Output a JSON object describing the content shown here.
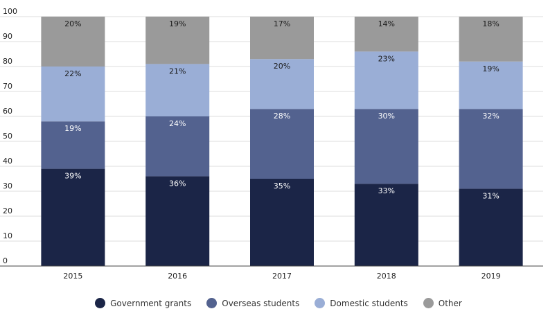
{
  "chart_data": {
    "type": "bar",
    "stacked": true,
    "categories": [
      "2015",
      "2016",
      "2017",
      "2018",
      "2019"
    ],
    "ylim": [
      0,
      100
    ],
    "yticks": [
      0,
      10,
      20,
      30,
      40,
      50,
      60,
      70,
      80,
      90,
      100
    ],
    "grid": true,
    "legend_position": "bottom",
    "series": [
      {
        "name": "Government grants",
        "color": "#1b2547",
        "text_color": "#ffffff",
        "values": [
          39,
          36,
          35,
          33,
          31
        ],
        "labels": [
          "39%",
          "36%",
          "35%",
          "33%",
          "31%"
        ]
      },
      {
        "name": "Overseas students",
        "color": "#53628f",
        "text_color": "#ffffff",
        "values": [
          19,
          24,
          28,
          30,
          32
        ],
        "labels": [
          "19%",
          "24%",
          "28%",
          "30%",
          "32%"
        ]
      },
      {
        "name": "Domestic students",
        "color": "#9aaed6",
        "text_color": "#1a1a1a",
        "values": [
          22,
          21,
          20,
          23,
          19
        ],
        "labels": [
          "22%",
          "21%",
          "20%",
          "23%",
          "19%"
        ]
      },
      {
        "name": "Other",
        "color": "#9a9a9a",
        "text_color": "#1a1a1a",
        "values": [
          20,
          19,
          17,
          14,
          18
        ],
        "labels": [
          "20%",
          "19%",
          "17%",
          "14%",
          "18%"
        ]
      }
    ]
  }
}
